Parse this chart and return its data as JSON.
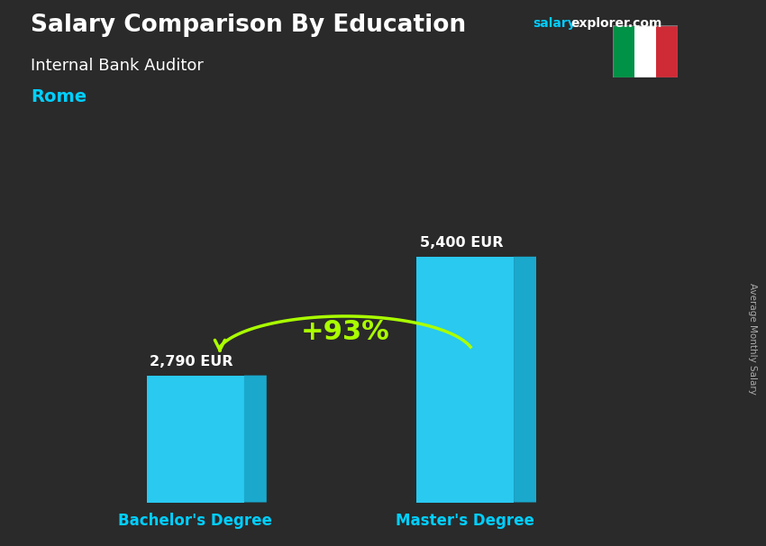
{
  "title": "Salary Comparison By Education",
  "subtitle": "Internal Bank Auditor",
  "city": "Rome",
  "watermark_salary": "salary",
  "watermark_rest": "explorer.com",
  "ylabel": "Average Monthly Salary",
  "categories": [
    "Bachelor's Degree",
    "Master's Degree"
  ],
  "values": [
    2790,
    5400
  ],
  "value_labels": [
    "2,790 EUR",
    "5,400 EUR"
  ],
  "pct_change": "+93%",
  "bar_color_front": "#29c9f0",
  "bar_color_side": "#1aa8cc",
  "bar_color_top": "#5ddaf5",
  "bar_width": 0.13,
  "bar_depth": 0.03,
  "ylim": [
    0,
    7200
  ],
  "bg_color": "#2a2a2a",
  "title_color": "#ffffff",
  "subtitle_color": "#ffffff",
  "city_color": "#00cfff",
  "label_color": "#ffffff",
  "xticklabel_color": "#00cfff",
  "pct_color": "#aaff00",
  "arrow_color": "#aaff00",
  "watermark_salary_color": "#00ccff",
  "watermark_explorer_color": "#ffffff",
  "italy_flag_green": "#009246",
  "italy_flag_white": "#ffffff",
  "italy_flag_red": "#ce2b37",
  "x_positions": [
    0.27,
    0.63
  ],
  "xlim": [
    0.05,
    0.95
  ]
}
